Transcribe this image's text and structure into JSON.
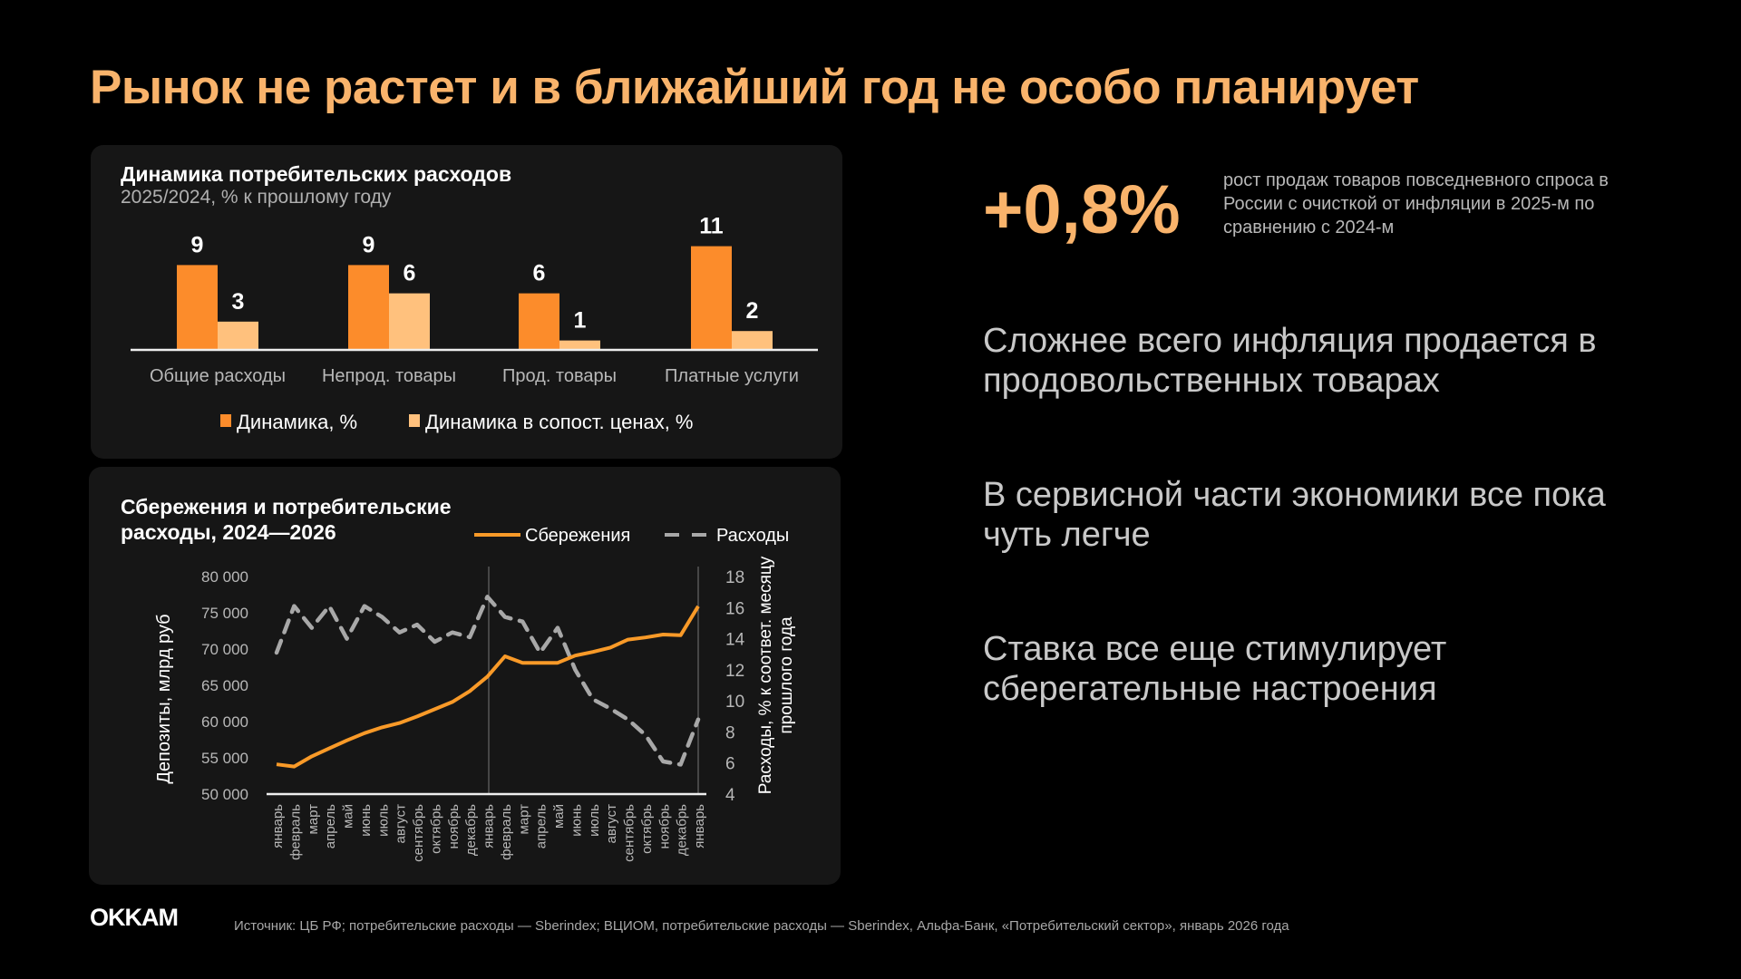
{
  "title": "Рынок не растет и в ближайший год не особо планирует",
  "colors": {
    "accent": "#f9b36b",
    "bar_nominal": "#fc8c2b",
    "bar_real": "#ffc17d",
    "savings": "#f99a28",
    "expenses": "#a8a8a8"
  },
  "highlight": {
    "value": "+0,8%",
    "description": "рост продаж товаров повседневного спроса в России с очисткой от инфляции в 2025-м по сравнению с 2024-м"
  },
  "headlines": [
    "Сложнее всего инфляция продается в продовольственных товарах",
    "В сервисной части экономики все пока чуть легче",
    "Ставка все еще стимулирует сберегательные настроения"
  ],
  "footer": {
    "logo": "OKKAM",
    "source": "Источник: ЦБ РФ; потребительские расходы — Sberindex; ВЦИОМ, потребительские расходы — Sberindex, Альфа-Банк, «Потребительский сектор», январь 2026  года"
  },
  "chart_data": [
    {
      "type": "bar",
      "title": "Динамика потребительских расходов",
      "subtitle": "2025/2024, % к прошлому году",
      "categories": [
        "Общие расходы",
        "Непрод. товары",
        "Прод. товары",
        "Платные услуги"
      ],
      "series": [
        {
          "name": "Динамика, %",
          "values": [
            9,
            9,
            6,
            11
          ]
        },
        {
          "name": "Динамика в сопост. ценах, %",
          "values": [
            3,
            6,
            1,
            2
          ]
        }
      ],
      "legend": "bottom"
    },
    {
      "type": "line",
      "title": "Сбережения и потребительские расходы, 2024—2026",
      "x": [
        "январь",
        "февраль",
        "март",
        "апрель",
        "май",
        "июнь",
        "июль",
        "август",
        "сентябрь",
        "октябрь",
        "ноябрь",
        "декабрь",
        "январь",
        "февраль",
        "март",
        "апрель",
        "май",
        "июнь",
        "июль",
        "август",
        "сентябрь",
        "октябрь",
        "ноябрь",
        "декабрь",
        "январь"
      ],
      "ylabel": "Депозиты, млрд руб",
      "y2label": "Расходы, % к соответ. месяцу прошлого года",
      "ylim": [
        50000,
        80000
      ],
      "yticks": [
        "50 000",
        "55 000",
        "60 000",
        "65 000",
        "70 000",
        "75 000",
        "80 000"
      ],
      "y2lim": [
        4,
        18
      ],
      "y2ticks": [
        "4",
        "6",
        "8",
        "10",
        "12",
        "14",
        "16",
        "18"
      ],
      "series": [
        {
          "name": "Сбережения",
          "axis": "left",
          "values": [
            54100,
            53800,
            55200,
            56300,
            57400,
            58400,
            59200,
            59800,
            60700,
            61700,
            62700,
            64200,
            66200,
            69000,
            68100,
            68100,
            68100,
            69100,
            69600,
            70200,
            71300,
            71600,
            72000,
            71900,
            75900
          ]
        },
        {
          "name": "Расходы",
          "axis": "right",
          "values": [
            13.1,
            16.1,
            14.7,
            16.1,
            14.0,
            16.1,
            15.4,
            14.4,
            14.9,
            13.8,
            14.4,
            14.1,
            16.7,
            15.4,
            15.1,
            13.1,
            14.7,
            12.0,
            10.1,
            9.5,
            8.8,
            7.8,
            6.1,
            5.9,
            8.8
          ]
        }
      ],
      "legend": "top-right"
    }
  ]
}
